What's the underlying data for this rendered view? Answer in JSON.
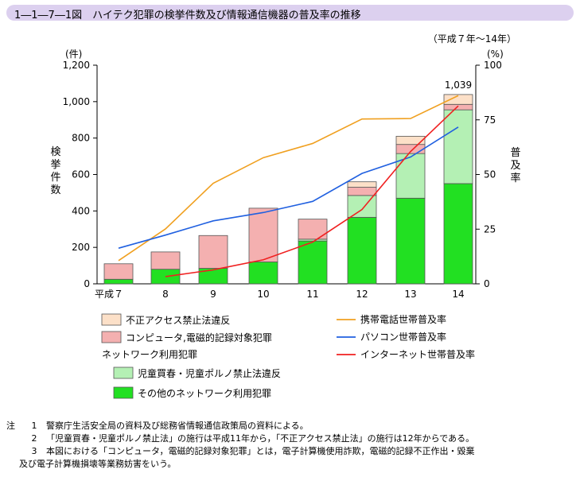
{
  "header": {
    "title": "1―1―7―1図　ハイテク犯罪の検挙件数及び情報通信機器の普及率の推移",
    "period": "（平成７年～14年）"
  },
  "chart_data": {
    "type": "bar",
    "categories": [
      "平成７",
      "8",
      "9",
      "10",
      "11",
      "12",
      "13",
      "14"
    ],
    "left_axis": {
      "unit": "(件)",
      "label": "検挙件数",
      "ylim": [
        0,
        1200
      ],
      "ticks": [
        "0",
        "200",
        "400",
        "600",
        "800",
        "1,000",
        "1,200"
      ]
    },
    "right_axis": {
      "unit": "(%)",
      "label": "普及率",
      "ylim": [
        0,
        100
      ],
      "ticks": [
        "0",
        "25",
        "50",
        "75",
        "100"
      ]
    },
    "stacked_series": [
      {
        "name": "その他のネットワーク利用犯罪",
        "color": "#22e022",
        "values": [
          25,
          80,
          85,
          120,
          235,
          365,
          470,
          550
        ]
      },
      {
        "name": "児童買春・児童ポルノ禁止法違反",
        "color": "#b4f0b4",
        "values": [
          0,
          0,
          0,
          0,
          10,
          120,
          245,
          405
        ]
      },
      {
        "name": "コンピュータ,電磁的記録対象犯罪",
        "color": "#f4b0b0",
        "values": [
          85,
          95,
          180,
          295,
          110,
          45,
          50,
          30
        ]
      },
      {
        "name": "不正アクセス禁止法違反",
        "color": "#fce0c8",
        "values": [
          0,
          0,
          0,
          0,
          0,
          30,
          45,
          54
        ]
      }
    ],
    "line_series": [
      {
        "name": "携帯電話世帯普及率",
        "color": "#f0a020",
        "values": [
          10.6,
          25.1,
          46.0,
          57.7,
          64.2,
          75.4,
          75.6,
          86.1
        ]
      },
      {
        "name": "パソコン世帯普及率",
        "color": "#2060e0",
        "values": [
          16.3,
          22.3,
          28.8,
          32.6,
          37.7,
          50.5,
          58.0,
          71.7
        ]
      },
      {
        "name": "インターネット世帯普及率",
        "color": "#f02020",
        "values": [
          null,
          3.3,
          6.4,
          11.0,
          19.1,
          34.0,
          60.5,
          81.4
        ]
      }
    ],
    "annotations": [
      {
        "category": "14",
        "text": "1,039"
      }
    ],
    "legend": {
      "group_label": "ネットワーク利用犯罪"
    }
  },
  "notes": [
    {
      "label": "注",
      "num": "1",
      "text": "警察庁生活安全局の資料及び総務省情報通信政策局の資料による。"
    },
    {
      "label": "",
      "num": "2",
      "text": "「児童買春・児童ポルノ禁止法」の施行は平成11年から，「不正アクセス禁止法」の施行は12年からである。"
    },
    {
      "label": "",
      "num": "3",
      "text": "本図における「コンピュータ，電磁的記録対象犯罪」とは，電子計算機使用詐欺，電磁的記録不正作出・毀棄"
    },
    {
      "label": "",
      "num": "",
      "text": "及び電子計算機損壊等業務妨害をいう。",
      "cont": true
    }
  ]
}
